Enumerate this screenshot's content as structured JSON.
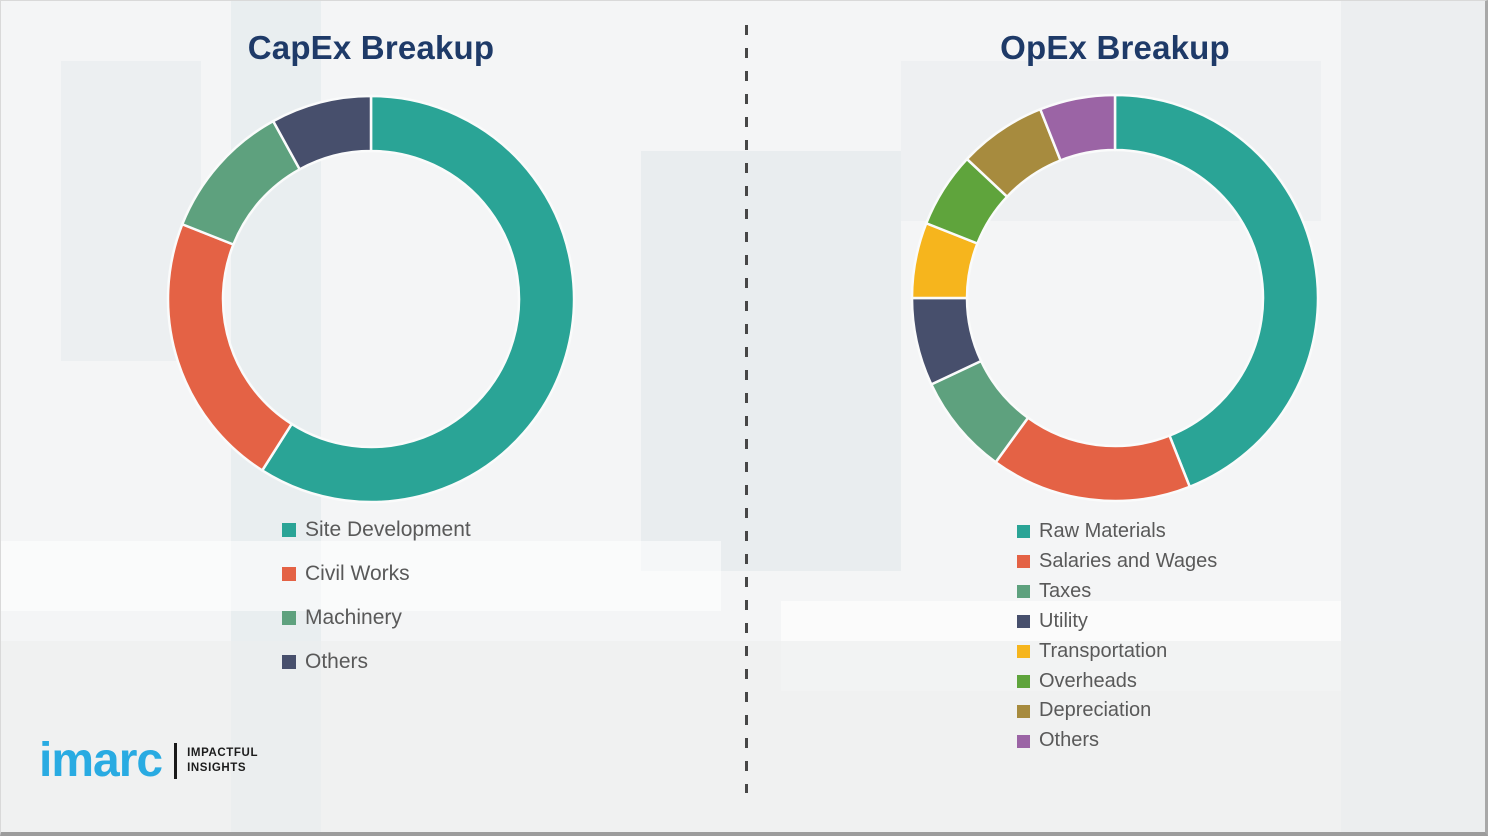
{
  "chart_data": [
    {
      "type": "pie",
      "subtype": "donut",
      "title": "CapEx Breakup",
      "labels": [
        "Site Development",
        "Civil Works",
        "Machinery",
        "Others"
      ],
      "values": [
        59,
        22,
        11,
        8
      ],
      "colors": [
        "#2aa496",
        "#e46245",
        "#5ea17e",
        "#474f6c"
      ],
      "start_angle_deg": 0,
      "direction": "clockwise",
      "inner_radius_ratio": 0.73,
      "legend_position": "below",
      "data_labels_shown": false
    },
    {
      "type": "pie",
      "subtype": "donut",
      "title": "OpEx Breakup",
      "labels": [
        "Raw Materials",
        "Salaries and Wages",
        "Taxes",
        "Utility",
        "Transportation",
        "Overheads",
        "Depreciation",
        "Others"
      ],
      "values": [
        44,
        16,
        8,
        7,
        6,
        6,
        7,
        6
      ],
      "colors": [
        "#2aa496",
        "#e46245",
        "#5ea17e",
        "#474f6c",
        "#f6b51d",
        "#5fa43c",
        "#a78b3e",
        "#9b64a5"
      ],
      "start_angle_deg": 0,
      "direction": "clockwise",
      "inner_radius_ratio": 0.73,
      "legend_position": "below",
      "data_labels_shown": false
    }
  ],
  "titles": {
    "title_color": "#1e3a68",
    "legend_text_color": "#595959"
  },
  "logo": {
    "brand": "imarc",
    "tagline_top": "IMPACTFUL",
    "tagline_bottom": "INSIGHTS",
    "brand_color": "#29abe2"
  }
}
